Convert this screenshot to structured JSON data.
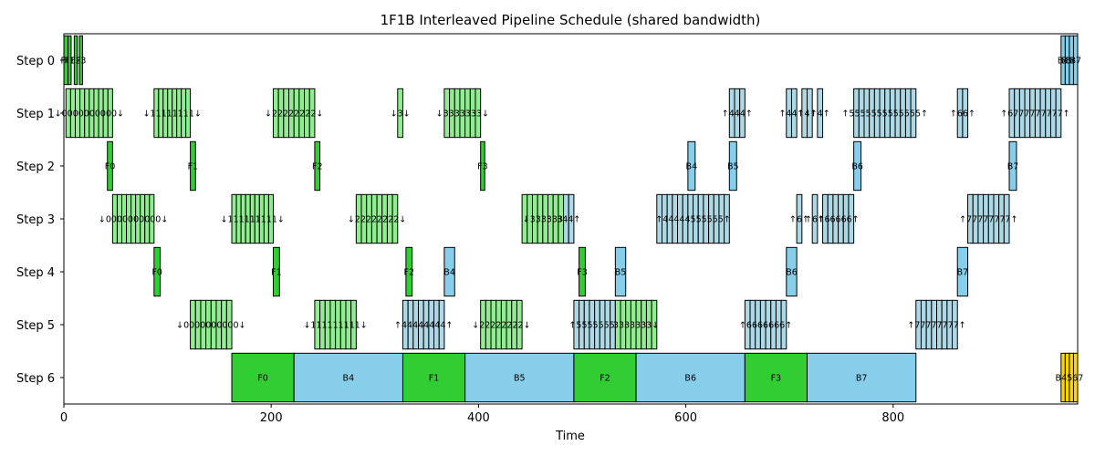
{
  "chart_data": {
    "type": "gantt",
    "title": "1F1B Interleaved Pipeline Schedule (shared bandwidth)",
    "xlabel": "Time",
    "xlim": [
      0,
      978
    ],
    "x_ticks": [
      0,
      200,
      400,
      600,
      800
    ],
    "rows": [
      "Step 0",
      "Step 1",
      "Step 2",
      "Step 3",
      "Step 4",
      "Step 5",
      "Step 6"
    ],
    "colors": {
      "forward": "#32cd32",
      "backward": "#87ceeb",
      "send_forward": "#90ee90",
      "send_backward": "#add8e6",
      "other": "#ffd700",
      "edge": "#000000"
    },
    "tasks": [
      {
        "row": 0,
        "start": 0,
        "end": 4,
        "kind": "forward",
        "label": "F0"
      },
      {
        "row": 0,
        "start": 4,
        "end": 7,
        "kind": "forward",
        "label": "F1"
      },
      {
        "row": 0,
        "start": 10,
        "end": 13,
        "kind": "forward",
        "label": "F2"
      },
      {
        "row": 0,
        "start": 15,
        "end": 18,
        "kind": "forward",
        "label": "F3"
      },
      {
        "row": 0,
        "start": 962,
        "end": 966,
        "kind": "backward",
        "label": "B4"
      },
      {
        "row": 0,
        "start": 966,
        "end": 970,
        "kind": "backward",
        "label": "B5"
      },
      {
        "row": 0,
        "start": 970,
        "end": 974,
        "kind": "backward",
        "label": "B6"
      },
      {
        "row": 0,
        "start": 974,
        "end": 978,
        "kind": "backward",
        "label": "B7"
      },
      {
        "row": 1,
        "start": 2,
        "end": 47,
        "kind": "send_forward",
        "label": "↓0000000000↓",
        "slices": 10
      },
      {
        "row": 1,
        "start": 87,
        "end": 122,
        "kind": "send_forward",
        "label": "↓11111111↓",
        "slices": 8
      },
      {
        "row": 1,
        "start": 202,
        "end": 242,
        "kind": "send_forward",
        "label": "↓22222222↓",
        "slices": 8
      },
      {
        "row": 1,
        "start": 322,
        "end": 327,
        "kind": "send_forward",
        "label": "↓3↓",
        "slices": 1
      },
      {
        "row": 1,
        "start": 367,
        "end": 402,
        "kind": "send_forward",
        "label": "↓3333333↓",
        "slices": 7
      },
      {
        "row": 1,
        "start": 642,
        "end": 657,
        "kind": "send_backward",
        "label": "↑444↑",
        "slices": 3
      },
      {
        "row": 1,
        "start": 697,
        "end": 707,
        "kind": "send_backward",
        "label": "↑44↑",
        "slices": 2
      },
      {
        "row": 1,
        "start": 712,
        "end": 722,
        "kind": "send_backward",
        "label": "↑4↑",
        "slices": 2
      },
      {
        "row": 1,
        "start": 727,
        "end": 732,
        "kind": "send_backward",
        "label": "↑4↑",
        "slices": 1
      },
      {
        "row": 1,
        "start": 762,
        "end": 822,
        "kind": "send_backward",
        "label": "↑5555555555555↑",
        "slices": 12
      },
      {
        "row": 1,
        "start": 862,
        "end": 872,
        "kind": "send_backward",
        "label": "↑66↑",
        "slices": 2
      },
      {
        "row": 1,
        "start": 912,
        "end": 962,
        "kind": "send_backward",
        "label": "↑6777777777↑",
        "slices": 10
      },
      {
        "row": 2,
        "start": 42,
        "end": 47,
        "kind": "forward",
        "label": "F0"
      },
      {
        "row": 2,
        "start": 122,
        "end": 127,
        "kind": "forward",
        "label": "F1"
      },
      {
        "row": 2,
        "start": 242,
        "end": 247,
        "kind": "forward",
        "label": "F2"
      },
      {
        "row": 2,
        "start": 402,
        "end": 406,
        "kind": "forward",
        "label": "F3"
      },
      {
        "row": 2,
        "start": 602,
        "end": 609,
        "kind": "backward",
        "label": "B4"
      },
      {
        "row": 2,
        "start": 642,
        "end": 649,
        "kind": "backward",
        "label": "B5"
      },
      {
        "row": 2,
        "start": 762,
        "end": 769,
        "kind": "backward",
        "label": "B6"
      },
      {
        "row": 2,
        "start": 912,
        "end": 919,
        "kind": "backward",
        "label": "B7"
      },
      {
        "row": 3,
        "start": 47,
        "end": 87,
        "kind": "send_forward",
        "label": "↓0000000000↓",
        "slices": 9
      },
      {
        "row": 3,
        "start": 162,
        "end": 202,
        "kind": "send_forward",
        "label": "↓111111111↓",
        "slices": 9
      },
      {
        "row": 3,
        "start": 282,
        "end": 322,
        "kind": "send_forward",
        "label": "↓22222222↓",
        "slices": 8
      },
      {
        "row": 3,
        "start": 442,
        "end": 482,
        "kind": "send_forward",
        "label": "↓333333",
        "slices": 8
      },
      {
        "row": 3,
        "start": 482,
        "end": 492,
        "kind": "send_backward",
        "label": "344↑",
        "slices": 2
      },
      {
        "row": 3,
        "start": 572,
        "end": 642,
        "kind": "send_backward",
        "label": "↑44444555555↑",
        "slices": 14
      },
      {
        "row": 3,
        "start": 707,
        "end": 712,
        "kind": "send_backward",
        "label": "↑6↑",
        "slices": 1
      },
      {
        "row": 3,
        "start": 722,
        "end": 727,
        "kind": "send_backward",
        "label": "↑6↑",
        "slices": 1
      },
      {
        "row": 3,
        "start": 732,
        "end": 762,
        "kind": "send_backward",
        "label": "↑66666↑",
        "slices": 6
      },
      {
        "row": 3,
        "start": 872,
        "end": 912,
        "kind": "send_backward",
        "label": "↑77777777↑",
        "slices": 8
      },
      {
        "row": 4,
        "start": 87,
        "end": 93,
        "kind": "forward",
        "label": "F0"
      },
      {
        "row": 4,
        "start": 202,
        "end": 208,
        "kind": "forward",
        "label": "F1"
      },
      {
        "row": 4,
        "start": 330,
        "end": 336,
        "kind": "forward",
        "label": "F2"
      },
      {
        "row": 4,
        "start": 367,
        "end": 377,
        "kind": "backward",
        "label": "B4"
      },
      {
        "row": 4,
        "start": 497,
        "end": 503,
        "kind": "forward",
        "label": "F3"
      },
      {
        "row": 4,
        "start": 532,
        "end": 542,
        "kind": "backward",
        "label": "B5"
      },
      {
        "row": 4,
        "start": 697,
        "end": 707,
        "kind": "backward",
        "label": "B6"
      },
      {
        "row": 4,
        "start": 862,
        "end": 872,
        "kind": "backward",
        "label": "B7"
      },
      {
        "row": 5,
        "start": 122,
        "end": 162,
        "kind": "send_forward",
        "label": "↓0000000000↓",
        "slices": 8
      },
      {
        "row": 5,
        "start": 242,
        "end": 282,
        "kind": "send_forward",
        "label": "↓111111111↓",
        "slices": 8
      },
      {
        "row": 5,
        "start": 327,
        "end": 367,
        "kind": "send_backward",
        "label": "↑44444444↑",
        "slices": 8
      },
      {
        "row": 5,
        "start": 402,
        "end": 442,
        "kind": "send_forward",
        "label": "↓22222222↓",
        "slices": 8
      },
      {
        "row": 5,
        "start": 492,
        "end": 532,
        "kind": "send_backward",
        "label": "↑55555555",
        "slices": 8
      },
      {
        "row": 5,
        "start": 532,
        "end": 572,
        "kind": "send_forward",
        "label": "3333333↓",
        "slices": 8
      },
      {
        "row": 5,
        "start": 657,
        "end": 697,
        "kind": "send_backward",
        "label": "↑6666666↑",
        "slices": 8
      },
      {
        "row": 5,
        "start": 822,
        "end": 862,
        "kind": "send_backward",
        "label": "↑77777777↑",
        "slices": 8
      },
      {
        "row": 6,
        "start": 162,
        "end": 222,
        "kind": "forward",
        "label": "F0"
      },
      {
        "row": 6,
        "start": 222,
        "end": 327,
        "kind": "backward",
        "label": "B4"
      },
      {
        "row": 6,
        "start": 327,
        "end": 387,
        "kind": "forward",
        "label": "F1"
      },
      {
        "row": 6,
        "start": 387,
        "end": 492,
        "kind": "backward",
        "label": "B5"
      },
      {
        "row": 6,
        "start": 492,
        "end": 552,
        "kind": "forward",
        "label": "F2"
      },
      {
        "row": 6,
        "start": 552,
        "end": 657,
        "kind": "backward",
        "label": "B6"
      },
      {
        "row": 6,
        "start": 657,
        "end": 717,
        "kind": "forward",
        "label": "F3"
      },
      {
        "row": 6,
        "start": 717,
        "end": 822,
        "kind": "backward",
        "label": "B7"
      },
      {
        "row": 6,
        "start": 962,
        "end": 978,
        "kind": "other",
        "label": "B4567",
        "slices": 4
      }
    ]
  }
}
